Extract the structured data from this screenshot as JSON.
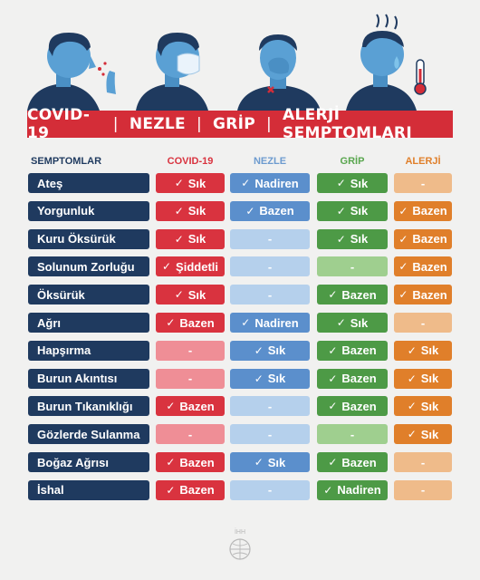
{
  "banner": {
    "items": [
      "COVID-19",
      "NEZLE",
      "GRİP",
      "ALERJİ SEMPTOMLARI"
    ],
    "separator": "|"
  },
  "columns": {
    "symptoms": "SEMPTOMLAR",
    "covid": "COVID-19",
    "nezle": "NEZLE",
    "grip": "GRİP",
    "alerji": "ALERJİ"
  },
  "check_mark": "✓",
  "rows": [
    {
      "symptom": "Ateş",
      "covid": "Sık",
      "nezle": "Nadiren",
      "grip": "Sık",
      "alerji": "-"
    },
    {
      "symptom": "Yorgunluk",
      "covid": "Sık",
      "nezle": "Bazen",
      "grip": "Sık",
      "alerji": "Bazen"
    },
    {
      "symptom": "Kuru Öksürük",
      "covid": "Sık",
      "nezle": "-",
      "grip": "Sık",
      "alerji": "Bazen"
    },
    {
      "symptom": "Solunum Zorluğu",
      "covid": "Şiddetli",
      "nezle": "-",
      "grip": "-",
      "alerji": "Bazen"
    },
    {
      "symptom": "Öksürük",
      "covid": "Sık",
      "nezle": "-",
      "grip": "Bazen",
      "alerji": "Bazen"
    },
    {
      "symptom": "Ağrı",
      "covid": "Bazen",
      "nezle": "Nadiren",
      "grip": "Sık",
      "alerji": "-"
    },
    {
      "symptom": "Hapşırma",
      "covid": "-",
      "nezle": "Sık",
      "grip": "Bazen",
      "alerji": "Sık"
    },
    {
      "symptom": "Burun Akıntısı",
      "covid": "-",
      "nezle": "Sık",
      "grip": "Bazen",
      "alerji": "Sık"
    },
    {
      "symptom": "Burun Tıkanıklığı",
      "covid": "Bazen",
      "nezle": "-",
      "grip": "Bazen",
      "alerji": "Sık"
    },
    {
      "symptom": "Gözlerde Sulanma",
      "covid": "-",
      "nezle": "-",
      "grip": "-",
      "alerji": "Sık"
    },
    {
      "symptom": "Boğaz Ağrısı",
      "covid": "Bazen",
      "nezle": "Sık",
      "grip": "Bazen",
      "alerji": "-"
    },
    {
      "symptom": "İshal",
      "covid": "Bazen",
      "nezle": "-",
      "grip": "Nadiren",
      "alerji": "-"
    }
  ],
  "logo_text": "İHH",
  "colors": {
    "navy": "#1f3a5f",
    "covid": "#d9333f",
    "nezle": "#5b8fcc",
    "grip": "#4d9a46",
    "alerji": "#e07f2a",
    "banner": "#d42d38"
  },
  "illustrations": [
    "coughing-person-icon",
    "masked-person-icon",
    "sneezing-person-icon",
    "feverish-person-icon"
  ]
}
